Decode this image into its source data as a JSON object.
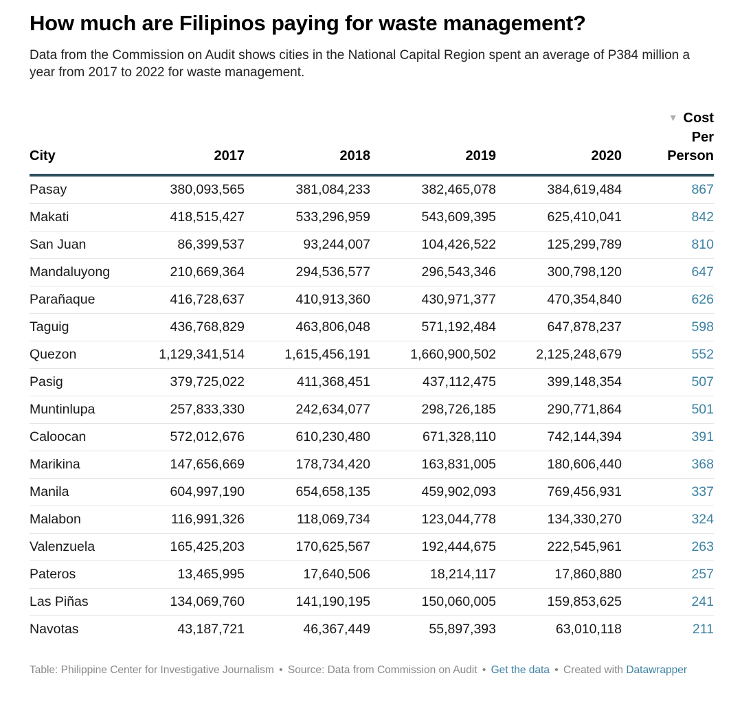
{
  "title": "How much are Filipinos paying for waste management?",
  "description": "Data from the Commission on Audit shows cities in the National Capital Region spent an average of P384 million a year from 2017 to 2022 for waste management.",
  "chart_data": {
    "type": "table",
    "columns": [
      "City",
      "2017",
      "2018",
      "2019",
      "2020",
      "Cost Per Person"
    ],
    "sort": {
      "column": "Cost Per Person",
      "direction": "descending"
    },
    "rows": [
      {
        "city": "Pasay",
        "y2017": "380,093,565",
        "y2018": "381,084,233",
        "y2019": "382,465,078",
        "y2020": "384,619,484",
        "cost": "867"
      },
      {
        "city": "Makati",
        "y2017": "418,515,427",
        "y2018": "533,296,959",
        "y2019": "543,609,395",
        "y2020": "625,410,041",
        "cost": "842"
      },
      {
        "city": "San Juan",
        "y2017": "86,399,537",
        "y2018": "93,244,007",
        "y2019": "104,426,522",
        "y2020": "125,299,789",
        "cost": "810"
      },
      {
        "city": "Mandaluyong",
        "y2017": "210,669,364",
        "y2018": "294,536,577",
        "y2019": "296,543,346",
        "y2020": "300,798,120",
        "cost": "647"
      },
      {
        "city": "Parañaque",
        "y2017": "416,728,637",
        "y2018": "410,913,360",
        "y2019": "430,971,377",
        "y2020": "470,354,840",
        "cost": "626"
      },
      {
        "city": "Taguig",
        "y2017": "436,768,829",
        "y2018": "463,806,048",
        "y2019": "571,192,484",
        "y2020": "647,878,237",
        "cost": "598"
      },
      {
        "city": "Quezon",
        "y2017": "1,129,341,514",
        "y2018": "1,615,456,191",
        "y2019": "1,660,900,502",
        "y2020": "2,125,248,679",
        "cost": "552"
      },
      {
        "city": "Pasig",
        "y2017": "379,725,022",
        "y2018": "411,368,451",
        "y2019": "437,112,475",
        "y2020": "399,148,354",
        "cost": "507"
      },
      {
        "city": "Muntinlupa",
        "y2017": "257,833,330",
        "y2018": "242,634,077",
        "y2019": "298,726,185",
        "y2020": "290,771,864",
        "cost": "501"
      },
      {
        "city": "Caloocan",
        "y2017": "572,012,676",
        "y2018": "610,230,480",
        "y2019": "671,328,110",
        "y2020": "742,144,394",
        "cost": "391"
      },
      {
        "city": "Marikina",
        "y2017": "147,656,669",
        "y2018": "178,734,420",
        "y2019": "163,831,005",
        "y2020": "180,606,440",
        "cost": "368"
      },
      {
        "city": "Manila",
        "y2017": "604,997,190",
        "y2018": "654,658,135",
        "y2019": "459,902,093",
        "y2020": "769,456,931",
        "cost": "337"
      },
      {
        "city": "Malabon",
        "y2017": "116,991,326",
        "y2018": "118,069,734",
        "y2019": "123,044,778",
        "y2020": "134,330,270",
        "cost": "324"
      },
      {
        "city": "Valenzuela",
        "y2017": "165,425,203",
        "y2018": "170,625,567",
        "y2019": "192,444,675",
        "y2020": "222,545,961",
        "cost": "263"
      },
      {
        "city": "Pateros",
        "y2017": "13,465,995",
        "y2018": "17,640,506",
        "y2019": "18,214,117",
        "y2020": "17,860,880",
        "cost": "257"
      },
      {
        "city": "Las Piñas",
        "y2017": "134,069,760",
        "y2018": "141,190,195",
        "y2019": "150,060,005",
        "y2020": "159,853,625",
        "cost": "241"
      },
      {
        "city": "Navotas",
        "y2017": "43,187,721",
        "y2018": "46,367,449",
        "y2019": "55,897,393",
        "y2020": "63,010,118",
        "cost": "211"
      }
    ]
  },
  "header": {
    "city": "City",
    "y2017": "2017",
    "y2018": "2018",
    "y2019": "2019",
    "y2020": "2020",
    "cost_line1": "Cost",
    "cost_line2": "Per",
    "cost_line3": "Person",
    "sort_icon": "▼"
  },
  "colors": {
    "accent": "#3d82a3",
    "header_rule": "#2f4f5f",
    "footer_text": "#888888"
  },
  "footer": {
    "table_credit": "Table: Philippine Center for Investigative Journalism",
    "source": "Source: Data from Commission on Audit",
    "get_data": "Get the data",
    "created_with": "Created with",
    "datawrapper": "Datawrapper",
    "separator": "•"
  }
}
